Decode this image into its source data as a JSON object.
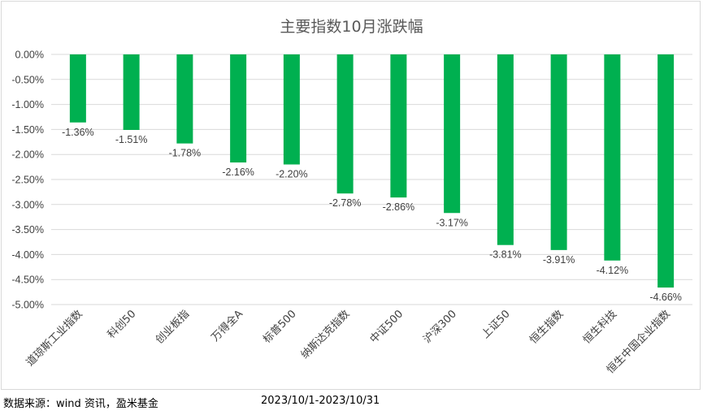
{
  "chart_data": {
    "type": "bar",
    "title": "主要指数10月涨跌幅",
    "categories": [
      "道琼斯工业指数",
      "科创50",
      "创业板指",
      "万得全A",
      "标普500",
      "纳斯达克指数",
      "中证500",
      "沪深300",
      "上证50",
      "恒生指数",
      "恒生科技",
      "恒生中国企业指数"
    ],
    "values": [
      -1.36,
      -1.51,
      -1.78,
      -2.16,
      -2.2,
      -2.78,
      -2.86,
      -3.17,
      -3.81,
      -3.91,
      -4.12,
      -4.66
    ],
    "data_labels": [
      "-1.36%",
      "-1.51%",
      "-1.78%",
      "-2.16%",
      "-2.20%",
      "-2.78%",
      "-2.86%",
      "-3.17%",
      "-3.81%",
      "-3.91%",
      "-4.12%",
      "-4.66%"
    ],
    "yticks": [
      0,
      -0.5,
      -1.0,
      -1.5,
      -2.0,
      -2.5,
      -3.0,
      -3.5,
      -4.0,
      -4.5,
      -5.0
    ],
    "ytick_labels": [
      "0.00%",
      "-0.50%",
      "-1.00%",
      "-1.50%",
      "-2.00%",
      "-2.50%",
      "-3.00%",
      "-3.50%",
      "-4.00%",
      "-4.50%",
      "-5.00%"
    ],
    "ylim": [
      -5.0,
      0
    ],
    "grid": true,
    "legend": "none",
    "bar_color": "#00b050",
    "xlabel": "",
    "ylabel": ""
  },
  "footer": {
    "source": "数据来源：wind 资讯，盈米基金",
    "period": "2023/10/1-2023/10/31"
  }
}
